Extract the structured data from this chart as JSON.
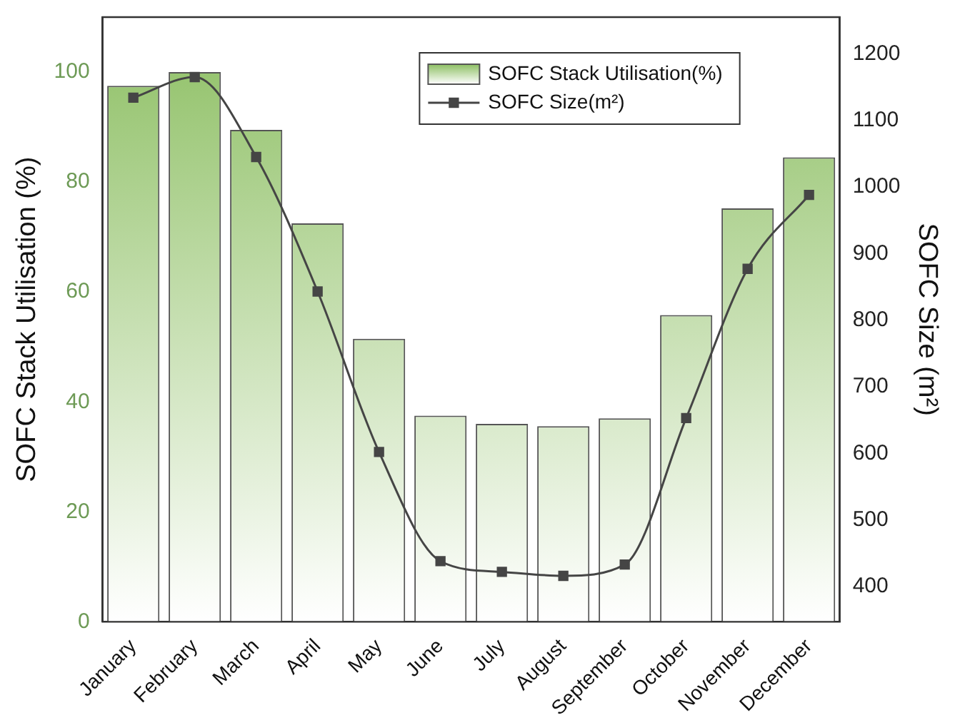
{
  "chart_data": {
    "type": "bar",
    "categories": [
      "January",
      "February",
      "March",
      "April",
      "May",
      "June",
      "July",
      "August",
      "September",
      "October",
      "November",
      "December"
    ],
    "ylabel": "SOFC Stack Utilisation (%)",
    "y2label": "SOFC Size (m²)",
    "series": [
      {
        "name": "SOFC Stack Utilisation(%)",
        "color": "#8dbf63",
        "values": [
          97.5,
          100,
          89.5,
          72.5,
          51.5,
          37.5,
          36,
          35.6,
          37,
          55.8,
          75.2,
          84.5
        ]
      },
      {
        "name": "SOFC Size(m²)",
        "type": "line",
        "axis": "y2",
        "color": "#454545",
        "values": [
          1134,
          1165,
          1045,
          843,
          602,
          438,
          422,
          416,
          433,
          653,
          877,
          988
        ]
      }
    ],
    "ylim": [
      0,
      110
    ],
    "yticks": [
      0,
      20,
      40,
      60,
      80,
      100
    ],
    "y2lim": [
      347,
      1255
    ],
    "y2ticks": [
      400,
      500,
      600,
      700,
      800,
      900,
      1000,
      1100,
      1200
    ],
    "grid": false,
    "legend": "top right",
    "marker": "square",
    "line_style": "solid"
  }
}
